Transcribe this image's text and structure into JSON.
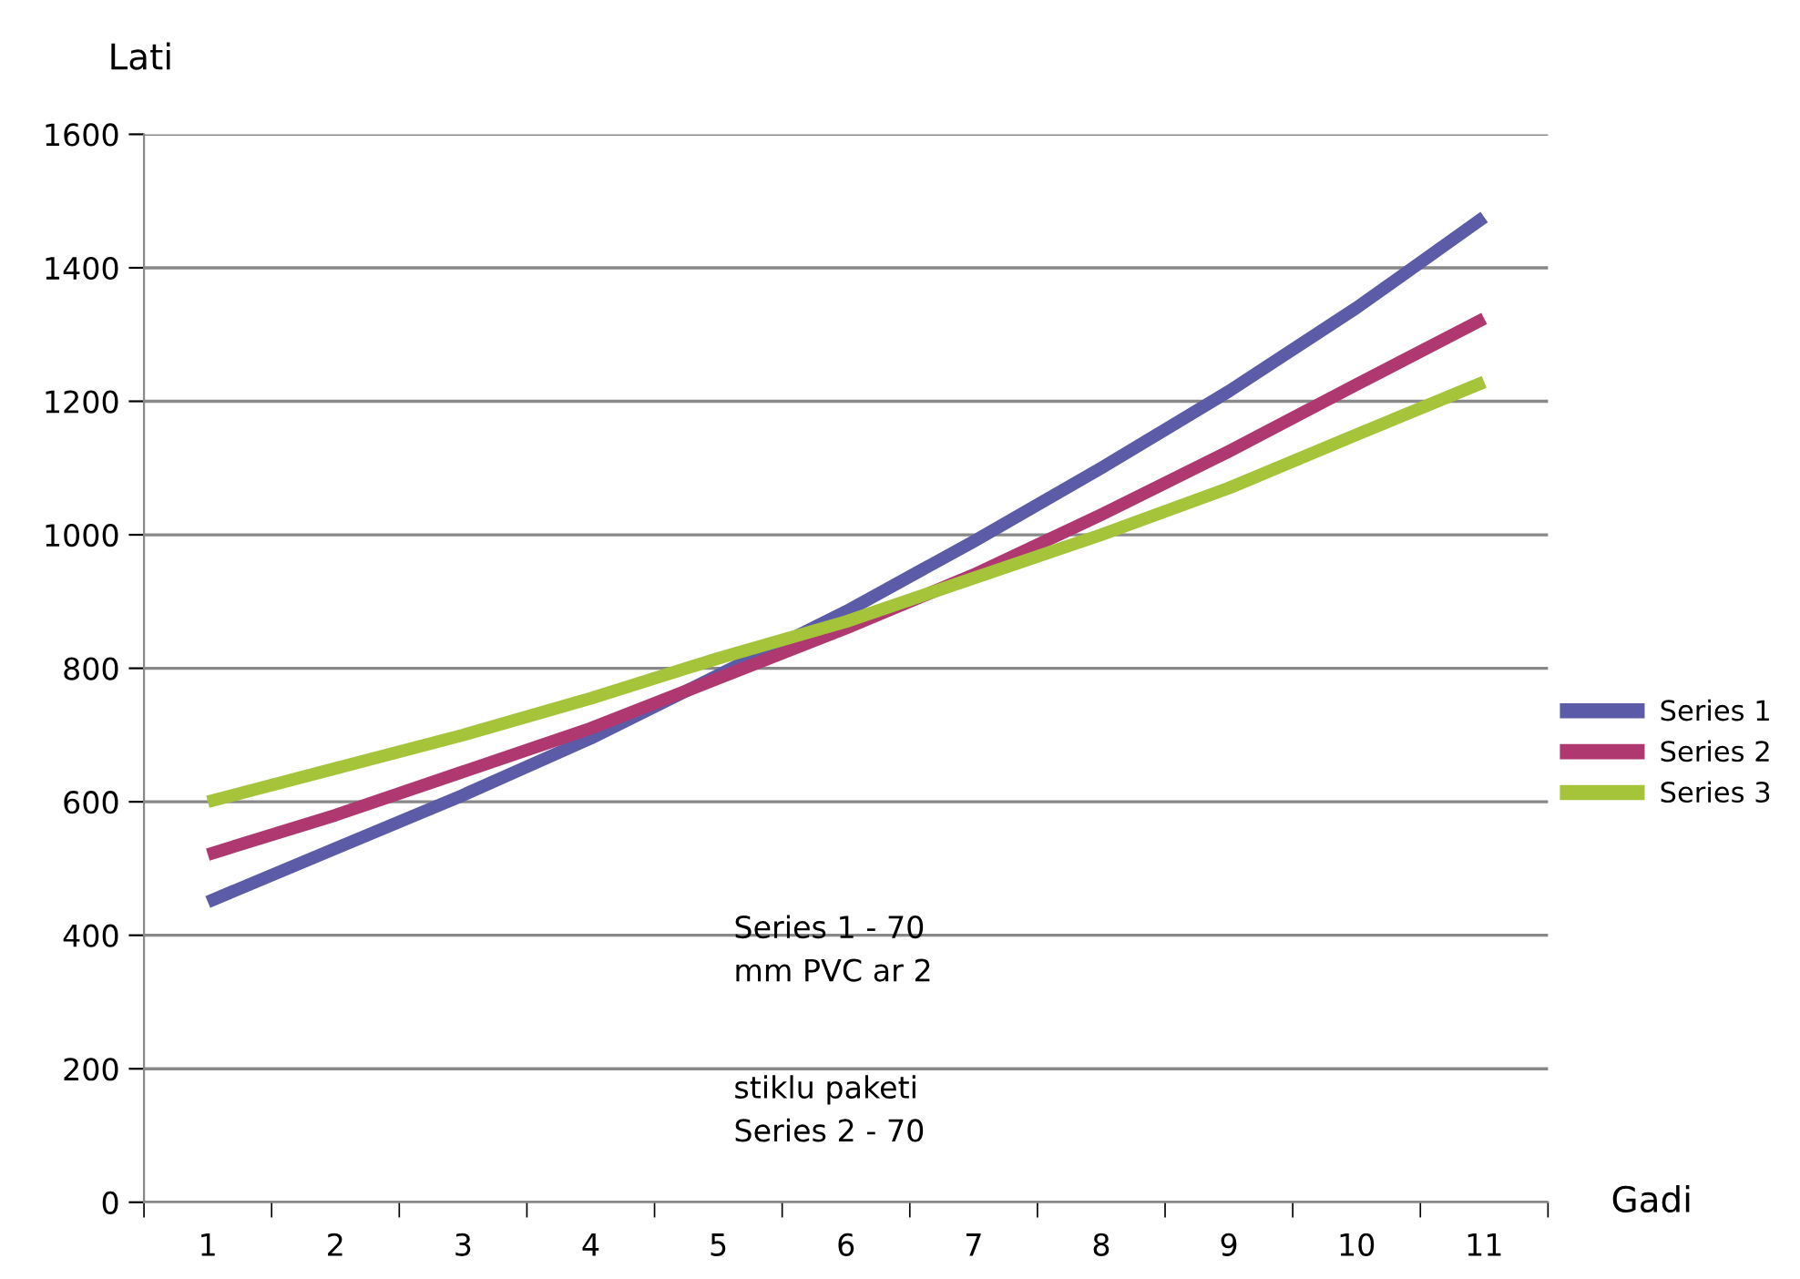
{
  "chart_data": {
    "type": "line",
    "xlabel": "Gadi",
    "ylabel": "Lati",
    "categories": [
      "1",
      "2",
      "3",
      "4",
      "5",
      "6",
      "7",
      "8",
      "9",
      "10",
      "11"
    ],
    "series": [
      {
        "name": "Series 1",
        "color": "#5b5ba8",
        "values": [
          450,
          530,
          610,
          695,
          790,
          885,
          990,
          1100,
          1215,
          1340,
          1476
        ]
      },
      {
        "name": "Series 2",
        "color": "#b03870",
        "values": [
          521,
          580,
          645,
          710,
          785,
          860,
          940,
          1030,
          1125,
          1225,
          1324
        ]
      },
      {
        "name": "Series 3",
        "color": "#a5c43a",
        "values": [
          600,
          650,
          700,
          755,
          815,
          870,
          935,
          1000,
          1070,
          1150,
          1229
        ]
      }
    ],
    "ylim": [
      0,
      1600
    ],
    "yticks": [
      0,
      200,
      400,
      600,
      800,
      1000,
      1200,
      1400,
      1600
    ],
    "grid": "y",
    "legend": "right",
    "marker": "none",
    "line_style": "solid",
    "annotations": [
      "Series 1 - 70\nmm PVC ar 2",
      "stiklu paketi\nSeries 2 - 70"
    ]
  }
}
